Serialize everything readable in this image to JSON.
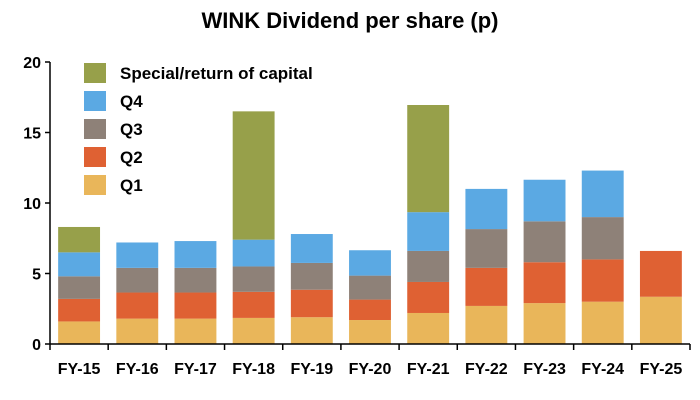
{
  "chart_data": {
    "type": "bar",
    "stacked": true,
    "title": "WINK Dividend per share (p)",
    "xlabel": "",
    "ylabel": "",
    "ylim": [
      0,
      20
    ],
    "yticks": [
      0,
      5,
      10,
      15,
      20
    ],
    "grid": false,
    "legend_position": "top-left",
    "categories": [
      "FY-15",
      "FY-16",
      "FY-17",
      "FY-18",
      "FY-19",
      "FY-20",
      "FY-21",
      "FY-22",
      "FY-23",
      "FY-24",
      "FY-25"
    ],
    "series": [
      {
        "name": "Q1",
        "color": "#E9B65A",
        "values": [
          1.6,
          1.8,
          1.8,
          1.85,
          1.9,
          1.7,
          2.2,
          2.7,
          2.9,
          3.0,
          3.35
        ]
      },
      {
        "name": "Q2",
        "color": "#DF6133",
        "values": [
          1.6,
          1.85,
          1.85,
          1.85,
          1.95,
          1.45,
          2.2,
          2.7,
          2.9,
          3.0,
          3.25
        ]
      },
      {
        "name": "Q3",
        "color": "#8E8178",
        "values": [
          1.6,
          1.75,
          1.75,
          1.8,
          1.9,
          1.7,
          2.2,
          2.75,
          2.9,
          3.0,
          0
        ]
      },
      {
        "name": "Q4",
        "color": "#5BA9E3",
        "values": [
          1.7,
          1.8,
          1.9,
          1.9,
          2.05,
          1.8,
          2.75,
          2.85,
          2.95,
          3.3,
          0
        ]
      },
      {
        "name": "Special/return of capital",
        "color": "#97A04A",
        "values": [
          1.8,
          0,
          0,
          9.1,
          0,
          0,
          7.6,
          0,
          0,
          0,
          0
        ]
      }
    ]
  }
}
